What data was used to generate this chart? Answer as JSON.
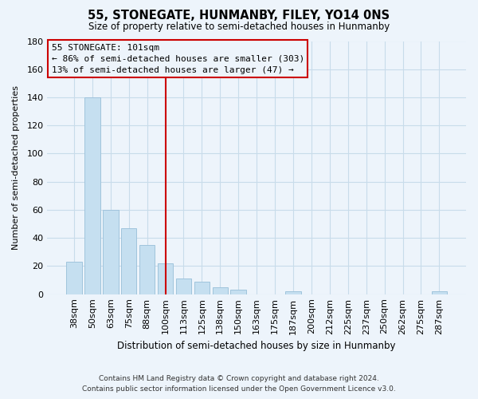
{
  "title": "55, STONEGATE, HUNMANBY, FILEY, YO14 0NS",
  "subtitle": "Size of property relative to semi-detached houses in Hunmanby",
  "xlabel": "Distribution of semi-detached houses by size in Hunmanby",
  "ylabel": "Number of semi-detached properties",
  "footer_line1": "Contains HM Land Registry data © Crown copyright and database right 2024.",
  "footer_line2": "Contains public sector information licensed under the Open Government Licence v3.0.",
  "annotation_title": "55 STONEGATE: 101sqm",
  "annotation_line1": "← 86% of semi-detached houses are smaller (303)",
  "annotation_line2": "13% of semi-detached houses are larger (47) →",
  "bar_labels": [
    "38sqm",
    "50sqm",
    "63sqm",
    "75sqm",
    "88sqm",
    "100sqm",
    "113sqm",
    "125sqm",
    "138sqm",
    "150sqm",
    "163sqm",
    "175sqm",
    "187sqm",
    "200sqm",
    "212sqm",
    "225sqm",
    "237sqm",
    "250sqm",
    "262sqm",
    "275sqm",
    "287sqm"
  ],
  "bar_heights": [
    23,
    140,
    60,
    47,
    35,
    22,
    11,
    9,
    5,
    3,
    0,
    0,
    2,
    0,
    0,
    0,
    0,
    0,
    0,
    0,
    2
  ],
  "bar_color": "#c5dff0",
  "bar_edge_color": "#a0c4dc",
  "vline_color": "#cc0000",
  "annotation_box_edge": "#cc0000",
  "ylim": [
    0,
    180
  ],
  "yticks": [
    0,
    20,
    40,
    60,
    80,
    100,
    120,
    140,
    160,
    180
  ],
  "grid_color": "#c8dcea",
  "bg_color": "#edf4fb",
  "title_fontsize": 10.5,
  "subtitle_fontsize": 8.5,
  "xlabel_fontsize": 8.5,
  "ylabel_fontsize": 8.0,
  "tick_fontsize": 8.0,
  "annot_fontsize": 8.0,
  "footer_fontsize": 6.5
}
